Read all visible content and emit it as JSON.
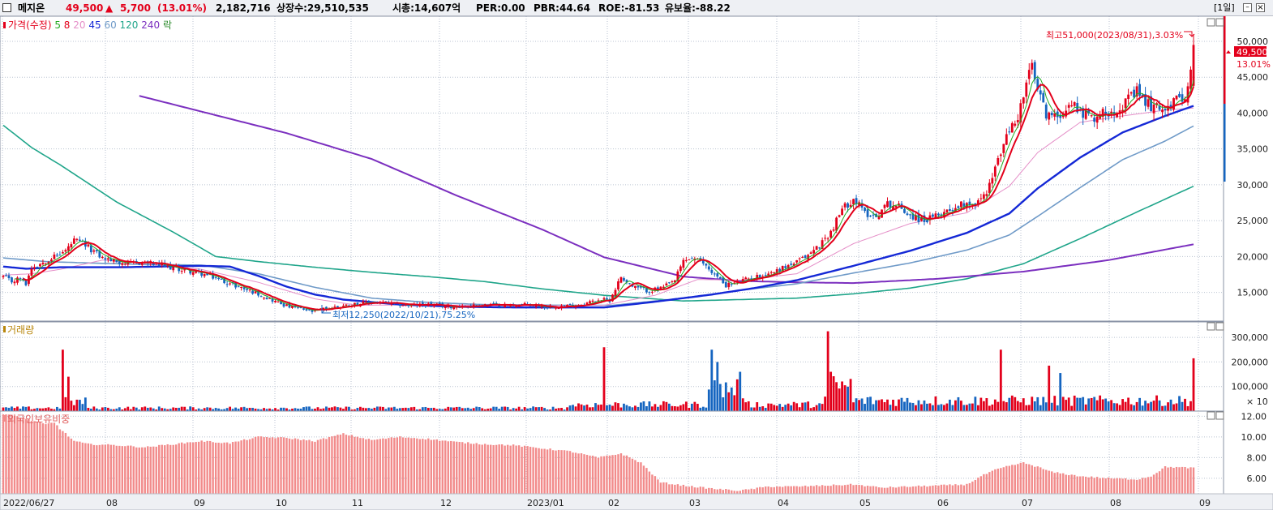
{
  "header": {
    "stock_name": "메지온",
    "price": "49,500",
    "change_arrow": "▲",
    "change": "5,700",
    "change_pct": "(13.01%)",
    "volume": "2,182,716",
    "listed_shares": "상장수:29,510,535",
    "market_cap": "시총:14,607억",
    "per": "PER:0.00",
    "pbr": "PBR:44.64",
    "roe": "ROE:-81.53",
    "float_ratio": "유보율:-88.22",
    "period": "[1일]"
  },
  "colors": {
    "up": "#e3001b",
    "down": "#1565c0",
    "ma5": "#22aa22",
    "ma8": "#e3001b",
    "ma20": "#e58fc8",
    "ma45": "#1428d6",
    "ma60": "#6f9ac8",
    "ma120": "#1fa58a",
    "ma240": "#7b2fbf",
    "foreign": "#f28b8b",
    "grid": "#b9c2d0"
  },
  "price_panel": {
    "legend": [
      {
        "text": "가격(수정)",
        "color": "#e3001b"
      },
      {
        "text": "5",
        "color": "#22aa22"
      },
      {
        "text": "8",
        "color": "#e3001b"
      },
      {
        "text": "20",
        "color": "#e58fc8"
      },
      {
        "text": "45",
        "color": "#1428d6"
      },
      {
        "text": "60",
        "color": "#6f9ac8"
      },
      {
        "text": "120",
        "color": "#1fa58a"
      },
      {
        "text": "240",
        "color": "#7b2fbf"
      },
      {
        "text": "락",
        "color": "#2a8a2a"
      }
    ],
    "high_label": "최고51,000(2023/08/31),3.03%",
    "low_label": "최저12,250(2022/10/21),75.25%",
    "last_price_tag": "49,500",
    "last_pct_tag": "13.01%"
  },
  "volume_panel": {
    "title": "거래량",
    "unit": "× 10"
  },
  "foreign_panel": {
    "title": "외국인보유비중"
  },
  "chart_data": {
    "type": "candlestick",
    "x_labels": [
      "2022/06/27",
      "08",
      "09",
      "10",
      "11",
      "12",
      "2023/01",
      "02",
      "03",
      "04",
      "05",
      "06",
      "07",
      "08",
      "09"
    ],
    "price_axis": {
      "ticks": [
        "50,000",
        "45,000",
        "40,000",
        "35,000",
        "30,000",
        "25,000",
        "20,000",
        "15,000"
      ],
      "range": [
        11000,
        53500
      ]
    },
    "volume_axis": {
      "ticks": [
        "300,000",
        "200,000",
        "100,000"
      ],
      "unit": "×10",
      "range": [
        0,
        350000
      ]
    },
    "foreign_axis": {
      "ticks": [
        "12.00",
        "10.00",
        "8.00",
        "6.00"
      ],
      "range": [
        4.5,
        12.5
      ]
    },
    "price_knots": [
      [
        0,
        17200
      ],
      [
        3,
        16500
      ],
      [
        6,
        17000
      ],
      [
        8,
        16200
      ],
      [
        10,
        18500
      ],
      [
        14,
        19200
      ],
      [
        18,
        20000
      ],
      [
        22,
        20800
      ],
      [
        25,
        22200
      ],
      [
        28,
        21800
      ],
      [
        31,
        21000
      ],
      [
        35,
        19800
      ],
      [
        40,
        19300
      ],
      [
        45,
        19000
      ],
      [
        50,
        19200
      ],
      [
        55,
        18800
      ],
      [
        60,
        18400
      ],
      [
        65,
        18000
      ],
      [
        70,
        17600
      ],
      [
        75,
        17000
      ],
      [
        80,
        16200
      ],
      [
        85,
        15500
      ],
      [
        90,
        14800
      ],
      [
        95,
        13900
      ],
      [
        100,
        13100
      ],
      [
        105,
        12700
      ],
      [
        109,
        12300
      ],
      [
        113,
        12700
      ],
      [
        118,
        13000
      ],
      [
        124,
        13400
      ],
      [
        130,
        13600
      ],
      [
        137,
        13400
      ],
      [
        143,
        13200
      ],
      [
        150,
        13300
      ],
      [
        157,
        13000
      ],
      [
        164,
        13100
      ],
      [
        170,
        13300
      ],
      [
        178,
        13200
      ],
      [
        185,
        13300
      ],
      [
        192,
        13000
      ],
      [
        198,
        13100
      ],
      [
        204,
        13300
      ],
      [
        210,
        14000
      ],
      [
        214,
        13900
      ],
      [
        218,
        17200
      ],
      [
        222,
        15800
      ],
      [
        228,
        15200
      ],
      [
        233,
        15700
      ],
      [
        237,
        16700
      ],
      [
        240,
        19400
      ],
      [
        243,
        19800
      ],
      [
        247,
        19100
      ],
      [
        251,
        17500
      ],
      [
        255,
        16000
      ],
      [
        259,
        16400
      ],
      [
        263,
        16900
      ],
      [
        267,
        17300
      ],
      [
        272,
        17900
      ],
      [
        276,
        18600
      ],
      [
        280,
        19200
      ],
      [
        284,
        20200
      ],
      [
        288,
        21600
      ],
      [
        292,
        23400
      ],
      [
        296,
        26600
      ],
      [
        300,
        28100
      ],
      [
        304,
        26100
      ],
      [
        308,
        25600
      ],
      [
        312,
        27400
      ],
      [
        316,
        27000
      ],
      [
        320,
        25800
      ],
      [
        324,
        25100
      ],
      [
        328,
        25300
      ],
      [
        332,
        26300
      ],
      [
        336,
        26900
      ],
      [
        340,
        27600
      ],
      [
        343,
        27300
      ],
      [
        346,
        28400
      ],
      [
        349,
        31000
      ],
      [
        352,
        34600
      ],
      [
        355,
        37600
      ],
      [
        358,
        39400
      ],
      [
        361,
        44000
      ],
      [
        363,
        46600
      ],
      [
        365,
        43000
      ],
      [
        368,
        40000
      ],
      [
        371,
        39300
      ],
      [
        374,
        40500
      ],
      [
        377,
        41300
      ],
      [
        380,
        40400
      ],
      [
        384,
        39300
      ],
      [
        388,
        40000
      ],
      [
        392,
        40500
      ],
      [
        396,
        41400
      ],
      [
        400,
        42900
      ],
      [
        404,
        41200
      ],
      [
        407,
        40700
      ],
      [
        410,
        41000
      ],
      [
        414,
        41700
      ],
      [
        418,
        43100
      ],
      [
        420,
        49500
      ]
    ],
    "high_point": {
      "value": 51000,
      "date": "2023/08/31"
    },
    "low_point": {
      "value": 12250,
      "date": "2022/10/21"
    },
    "moving_averages": {
      "ma45": [
        [
          0,
          18600
        ],
        [
          8,
          18300
        ],
        [
          20,
          18500
        ],
        [
          40,
          18500
        ],
        [
          70,
          18700
        ],
        [
          80,
          18600
        ],
        [
          90,
          17300
        ],
        [
          100,
          15800
        ],
        [
          110,
          14700
        ],
        [
          120,
          14000
        ],
        [
          140,
          13300
        ],
        [
          160,
          13000
        ],
        [
          180,
          12900
        ],
        [
          212,
          12900
        ],
        [
          230,
          13700
        ],
        [
          250,
          14700
        ],
        [
          265,
          15600
        ],
        [
          280,
          16700
        ],
        [
          300,
          18700
        ],
        [
          320,
          20800
        ],
        [
          340,
          23300
        ],
        [
          355,
          26000
        ],
        [
          365,
          29500
        ],
        [
          380,
          33800
        ],
        [
          395,
          37300
        ],
        [
          410,
          39600
        ],
        [
          420,
          41000
        ]
      ],
      "ma60": [
        [
          0,
          19800
        ],
        [
          15,
          19300
        ],
        [
          30,
          19100
        ],
        [
          50,
          18900
        ],
        [
          70,
          18800
        ],
        [
          90,
          17600
        ],
        [
          110,
          15700
        ],
        [
          130,
          14200
        ],
        [
          150,
          13600
        ],
        [
          170,
          13300
        ],
        [
          200,
          13200
        ],
        [
          215,
          13200
        ],
        [
          240,
          14200
        ],
        [
          260,
          15300
        ],
        [
          280,
          16200
        ],
        [
          300,
          17700
        ],
        [
          320,
          19100
        ],
        [
          340,
          20900
        ],
        [
          355,
          23000
        ],
        [
          365,
          25600
        ],
        [
          380,
          29600
        ],
        [
          395,
          33500
        ],
        [
          410,
          36100
        ],
        [
          420,
          38200
        ]
      ],
      "ma120": [
        [
          0,
          38300
        ],
        [
          10,
          35200
        ],
        [
          20,
          32800
        ],
        [
          40,
          27600
        ],
        [
          60,
          23400
        ],
        [
          75,
          20000
        ],
        [
          90,
          19300
        ],
        [
          110,
          18500
        ],
        [
          130,
          17800
        ],
        [
          150,
          17200
        ],
        [
          170,
          16500
        ],
        [
          190,
          15500
        ],
        [
          212,
          14600
        ],
        [
          240,
          13800
        ],
        [
          260,
          14000
        ],
        [
          280,
          14200
        ],
        [
          300,
          14800
        ],
        [
          320,
          15600
        ],
        [
          340,
          16900
        ],
        [
          360,
          19000
        ],
        [
          380,
          22500
        ],
        [
          400,
          26200
        ],
        [
          420,
          29800
        ]
      ],
      "ma240": [
        [
          48,
          42400
        ],
        [
          70,
          40200
        ],
        [
          100,
          37200
        ],
        [
          130,
          33600
        ],
        [
          160,
          28500
        ],
        [
          190,
          23800
        ],
        [
          212,
          19900
        ],
        [
          240,
          17200
        ],
        [
          260,
          16600
        ],
        [
          280,
          16400
        ],
        [
          300,
          16300
        ],
        [
          330,
          16900
        ],
        [
          360,
          17900
        ],
        [
          390,
          19500
        ],
        [
          420,
          21700
        ]
      ],
      "ma20": [
        [
          0,
          17400
        ],
        [
          10,
          17600
        ],
        [
          20,
          18200
        ],
        [
          35,
          19500
        ],
        [
          50,
          19100
        ],
        [
          70,
          18200
        ],
        [
          90,
          16400
        ],
        [
          110,
          14100
        ],
        [
          125,
          13200
        ],
        [
          150,
          13300
        ],
        [
          180,
          13100
        ],
        [
          212,
          13200
        ],
        [
          230,
          14600
        ],
        [
          245,
          16800
        ],
        [
          260,
          16700
        ],
        [
          280,
          17600
        ],
        [
          300,
          21800
        ],
        [
          320,
          24600
        ],
        [
          340,
          26100
        ],
        [
          355,
          29800
        ],
        [
          365,
          34500
        ],
        [
          380,
          38700
        ],
        [
          395,
          39600
        ],
        [
          410,
          40400
        ],
        [
          420,
          40700
        ]
      ]
    },
    "volume_spikes": [
      [
        21,
        250000
      ],
      [
        23,
        140000
      ],
      [
        212,
        260000
      ],
      [
        250,
        250000
      ],
      [
        252,
        200000
      ],
      [
        260,
        160000
      ],
      [
        291,
        325000
      ],
      [
        292,
        160000
      ],
      [
        352,
        250000
      ],
      [
        369,
        185000
      ],
      [
        373,
        155000
      ],
      [
        420,
        215000
      ]
    ],
    "foreign_ratio_knots": [
      [
        0,
        12.2
      ],
      [
        5,
        12.0
      ],
      [
        10,
        11.6
      ],
      [
        15,
        11.2
      ],
      [
        18,
        11.4
      ],
      [
        20,
        10.8
      ],
      [
        25,
        9.6
      ],
      [
        30,
        9.3
      ],
      [
        40,
        9.2
      ],
      [
        50,
        9.0
      ],
      [
        60,
        9.3
      ],
      [
        70,
        9.6
      ],
      [
        80,
        9.4
      ],
      [
        90,
        10.0
      ],
      [
        100,
        9.9
      ],
      [
        110,
        9.6
      ],
      [
        120,
        10.3
      ],
      [
        130,
        9.7
      ],
      [
        140,
        10.0
      ],
      [
        150,
        9.8
      ],
      [
        160,
        9.5
      ],
      [
        170,
        9.3
      ],
      [
        180,
        9.2
      ],
      [
        190,
        8.9
      ],
      [
        200,
        8.6
      ],
      [
        210,
        8.0
      ],
      [
        218,
        8.4
      ],
      [
        225,
        7.5
      ],
      [
        232,
        5.6
      ],
      [
        240,
        5.3
      ],
      [
        250,
        5.0
      ],
      [
        260,
        4.8
      ],
      [
        270,
        5.2
      ],
      [
        280,
        5.2
      ],
      [
        290,
        5.3
      ],
      [
        300,
        5.4
      ],
      [
        310,
        5.1
      ],
      [
        320,
        5.2
      ],
      [
        330,
        5.3
      ],
      [
        340,
        5.4
      ],
      [
        345,
        6.2
      ],
      [
        350,
        6.8
      ],
      [
        355,
        7.2
      ],
      [
        360,
        7.5
      ],
      [
        365,
        7.1
      ],
      [
        370,
        6.6
      ],
      [
        380,
        6.2
      ],
      [
        390,
        6.0
      ],
      [
        400,
        5.9
      ],
      [
        405,
        6.2
      ],
      [
        410,
        7.1
      ],
      [
        420,
        7.0
      ]
    ]
  }
}
